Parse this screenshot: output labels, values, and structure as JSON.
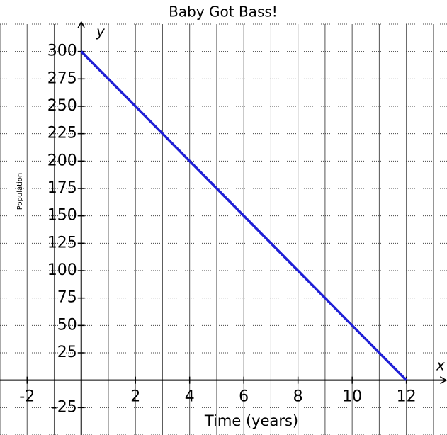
{
  "chart_data": {
    "type": "line",
    "title": "Baby Got Bass!",
    "x_label": "Time (years)",
    "y_label": "Population",
    "x_axis_name": "x",
    "y_axis_name": "y",
    "x": [
      0,
      12
    ],
    "series": [
      {
        "name": "Population",
        "color": "#1f1fd6",
        "values": [
          300,
          0
        ]
      }
    ],
    "xlim": [
      -3,
      13.5
    ],
    "ylim": [
      -50,
      325
    ],
    "xticks": [
      -2,
      2,
      4,
      6,
      8,
      10,
      12
    ],
    "yticks": [
      -25,
      25,
      50,
      75,
      100,
      125,
      150,
      175,
      200,
      225,
      250,
      275,
      300
    ],
    "xgrid": [
      -3,
      -2,
      -1,
      0,
      1,
      2,
      3,
      4,
      5,
      6,
      7,
      8,
      9,
      10,
      11,
      12,
      13
    ],
    "ygrid": [
      -50,
      -25,
      0,
      25,
      50,
      75,
      100,
      125,
      150,
      175,
      200,
      225,
      250,
      275,
      300,
      325
    ],
    "grid": true
  }
}
